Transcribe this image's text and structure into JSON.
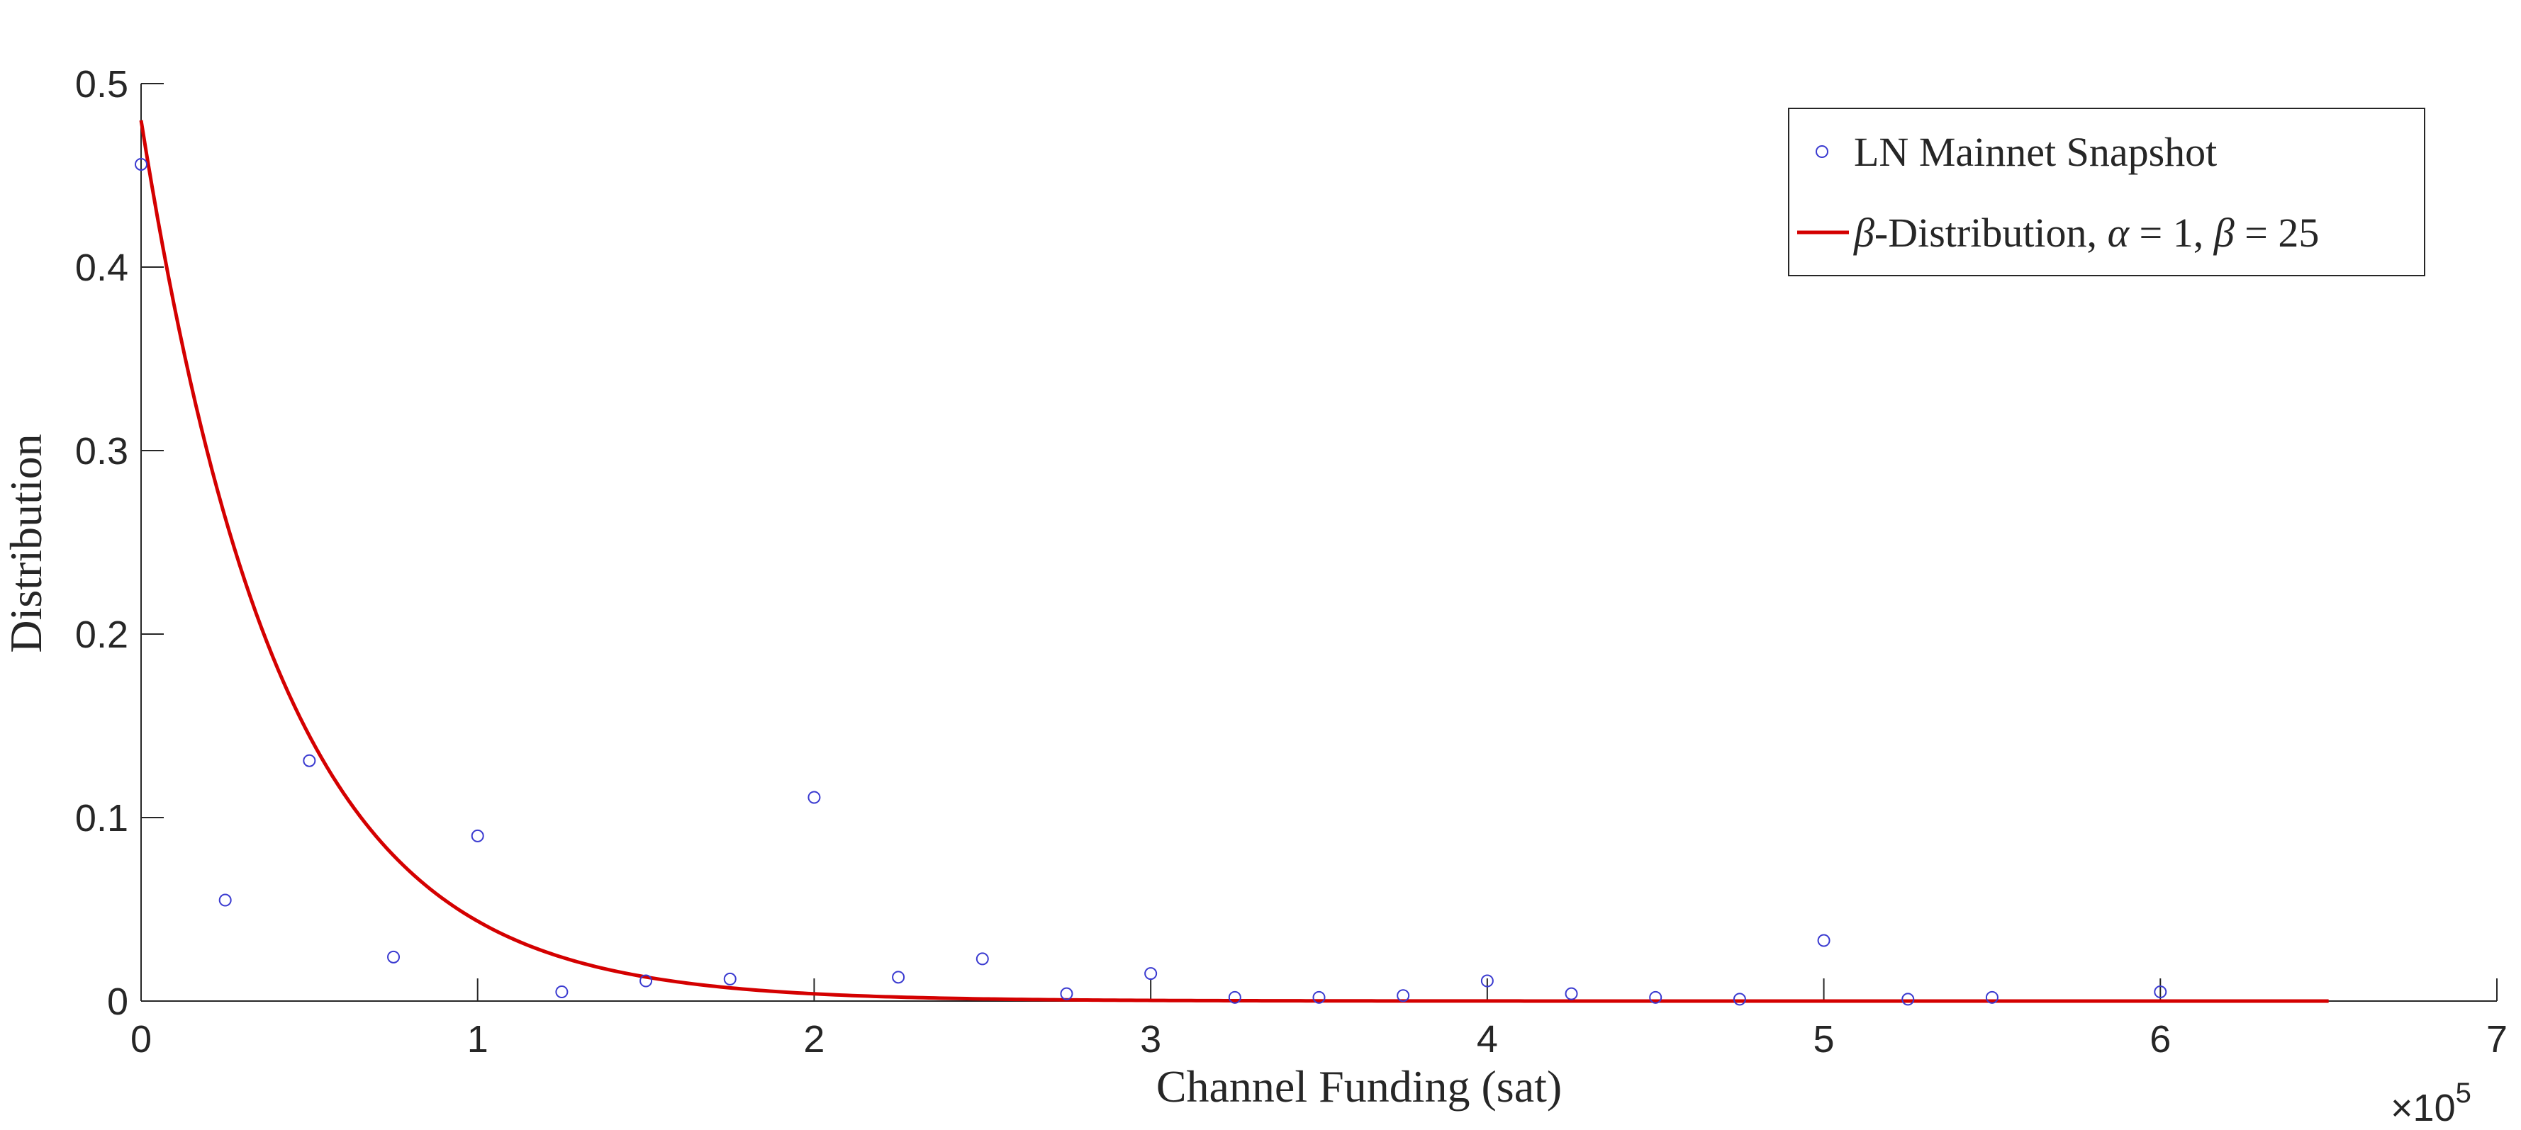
{
  "chart_data": {
    "type": "scatter",
    "xlabel": "Channel Funding (sat)",
    "ylabel": "Distribution",
    "x_exponent_label": "×10",
    "x_exponent_power": "5",
    "xlim": [
      0,
      7
    ],
    "ylim": [
      0,
      0.5
    ],
    "x_unit_multiplier": 100000,
    "xticks": [
      0,
      1,
      2,
      3,
      4,
      5,
      6,
      7
    ],
    "xtick_labels": [
      "0",
      "1",
      "2",
      "3",
      "4",
      "5",
      "6",
      "7"
    ],
    "yticks": [
      0,
      0.1,
      0.2,
      0.3,
      0.4,
      0.5
    ],
    "ytick_labels": [
      "0",
      "0.1",
      "0.2",
      "0.3",
      "0.4",
      "0.5"
    ],
    "grid": false,
    "legend_position": "top-right",
    "series": [
      {
        "name": "LN Mainnet Snapshot",
        "kind": "scatter",
        "marker": "open-circle",
        "color": "#3a3ad0",
        "x": [
          0,
          0.25,
          0.5,
          0.75,
          1.0,
          1.25,
          1.5,
          1.75,
          2.0,
          2.25,
          2.5,
          2.75,
          3.0,
          3.25,
          3.5,
          3.75,
          4.0,
          4.25,
          4.5,
          4.75,
          5.0,
          5.25,
          5.5,
          6.0
        ],
        "y": [
          0.456,
          0.055,
          0.131,
          0.024,
          0.09,
          0.005,
          0.011,
          0.012,
          0.111,
          0.013,
          0.023,
          0.004,
          0.015,
          0.002,
          0.002,
          0.003,
          0.011,
          0.004,
          0.002,
          0.001,
          0.033,
          0.001,
          0.002,
          0.005
        ]
      },
      {
        "name": "β-Distribution, α = 1, β = 25",
        "name_parts": {
          "beta_sym": "β",
          "rest1": "-Distribution, ",
          "alpha_sym": "α",
          "eq1": " = 1, ",
          "beta_sym2": "β",
          "eq2": " = 25"
        },
        "kind": "line",
        "color": "#d40000",
        "x_range": [
          0,
          6.5
        ],
        "formula": "0.48 * exp(-2.4 * x)"
      }
    ]
  }
}
